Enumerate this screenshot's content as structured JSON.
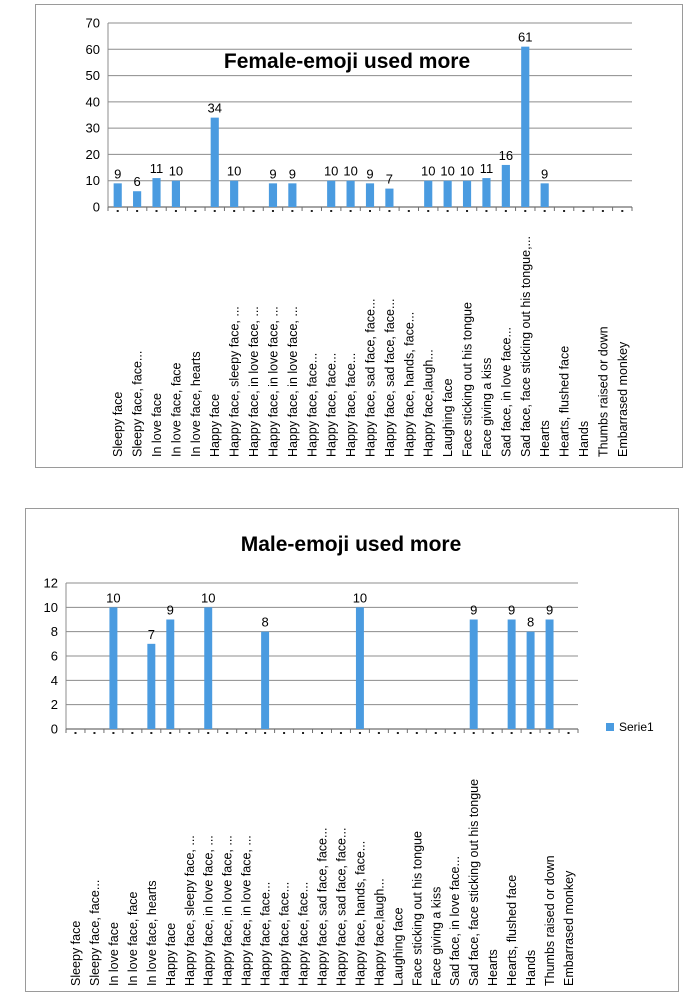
{
  "chart_data": [
    {
      "type": "bar",
      "title": "Female-emoji  used more",
      "categories": [
        "Sleepy face",
        "Sleepy face, face...",
        "In love face",
        "In love face, face",
        "In love face, hearts",
        "Happy face",
        "Happy face, sleepy face, ...",
        "Happy face, in love face, ...",
        "Happy face, in love face, ...",
        "Happy face, in love face, ...",
        "Happy face, face...",
        "Happy face, face...",
        "Happy face, face...",
        "Happy face, sad face, face...",
        "Happy face, sad face, face...",
        "Happy face, hands, face...",
        "Happy face,laugh...",
        "Laughing face",
        "Face sticking out his tongue",
        "Face giving a kiss",
        "Sad face, in love face...",
        "Sad face,  face sticking out his tongue,...",
        "Hearts",
        "Hearts, flushed face",
        "Hands",
        "Thumbs raised or down",
        "Embarrased monkey"
      ],
      "series": [
        {
          "values": [
            9,
            6,
            11,
            10,
            0,
            34,
            10,
            0,
            9,
            9,
            0,
            10,
            10,
            9,
            7,
            0,
            10,
            10,
            10,
            11,
            16,
            61,
            9,
            0,
            0,
            0,
            0
          ]
        }
      ],
      "data_labels": [
        "9",
        "6",
        "11",
        "10",
        "",
        "34",
        "10",
        "",
        "9",
        "9",
        "",
        "10",
        "10",
        "9",
        "7",
        "",
        "10",
        "10",
        "10",
        "11",
        "16",
        "61",
        "9",
        "",
        "",
        "",
        ""
      ],
      "ylim": [
        0,
        70
      ],
      "yticks": [
        "0",
        "10",
        "20",
        "30",
        "40",
        "50",
        "60",
        "70"
      ],
      "xlabel": "",
      "ylabel": "",
      "grid": true,
      "color": "#4a9be0"
    },
    {
      "type": "bar",
      "title": "Male-emoji  used more",
      "categories": [
        "Sleepy face",
        "Sleepy face, face...",
        "In love face",
        "In love face, face",
        "In love face, hearts",
        "Happy face",
        "Happy face, sleepy face, ...",
        "Happy face, in love face, ...",
        "Happy face, in love face, ...",
        "Happy face, in love face, ...",
        "Happy face, face...",
        "Happy face, face...",
        "Happy face, face...",
        "Happy face, sad face, face...",
        "Happy face, sad face, face...",
        "Happy face, hands, face...",
        "Happy face,laugh...",
        "Laughing face",
        "Face sticking out his tongue",
        "Face giving a kiss",
        "Sad face, in love face...",
        "Sad face,  face sticking out his tongue",
        "Hearts",
        "Hearts, flushed face",
        "Hands",
        "Thumbs raised or down",
        "Embarrased monkey"
      ],
      "series": [
        {
          "name": "Serie1",
          "values": [
            0,
            0,
            10,
            0,
            7,
            9,
            0,
            10,
            0,
            0,
            8,
            0,
            0,
            0,
            0,
            10,
            0,
            0,
            0,
            0,
            0,
            9,
            0,
            9,
            8,
            9,
            0
          ]
        }
      ],
      "data_labels": [
        "",
        "",
        "10",
        "",
        "7",
        "9",
        "",
        "10",
        "",
        "",
        "8",
        "",
        "",
        "",
        "",
        "10",
        "",
        "",
        "",
        "",
        "",
        "9",
        "",
        "9",
        "8",
        "9",
        ""
      ],
      "ylim": [
        0,
        12
      ],
      "yticks": [
        "0",
        "2",
        "4",
        "6",
        "8",
        "10",
        "12"
      ],
      "xlabel": "",
      "ylabel": "",
      "grid": true,
      "legend": "right",
      "color": "#4a9be0"
    }
  ]
}
